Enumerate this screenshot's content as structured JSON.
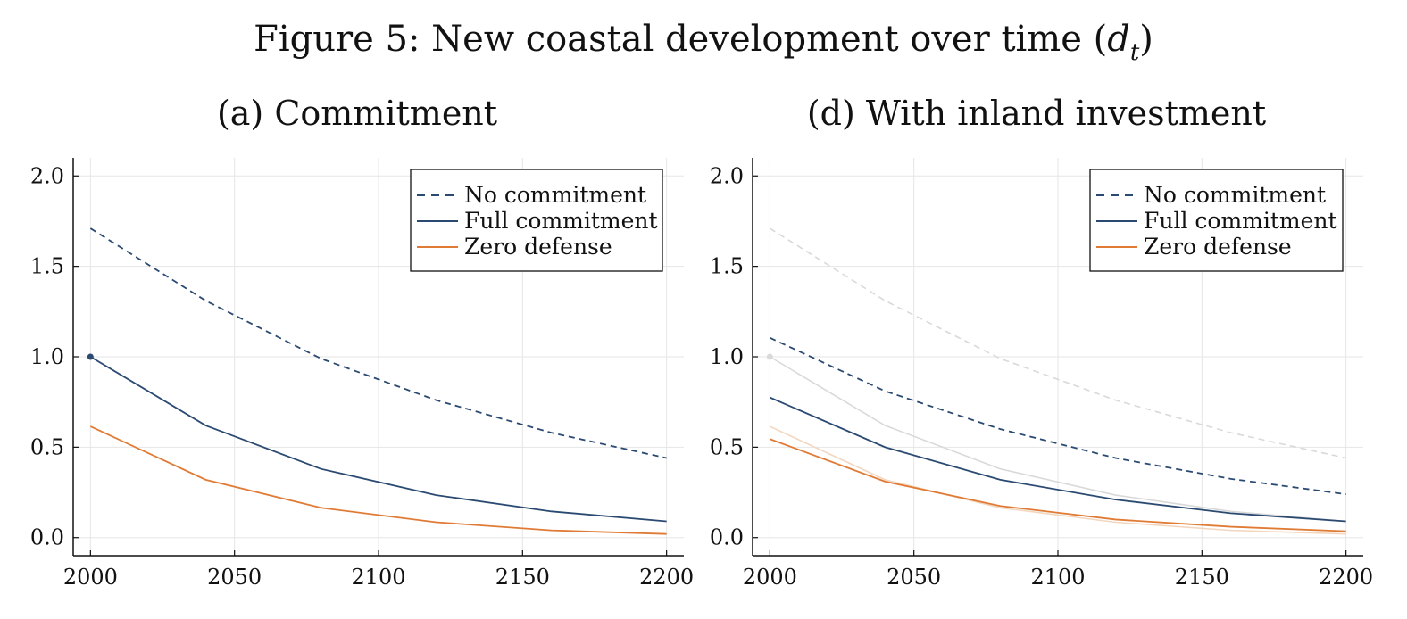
{
  "figure": {
    "title_prefix": "Figure 5: New coastal development over time (",
    "title_var": "d",
    "title_sub": "t",
    "title_suffix": ")"
  },
  "colors": {
    "navy": "#2b4a72",
    "orange": "#e07b35",
    "grid": "#e6e6e6",
    "ghost": "#d9d9d9",
    "ghost_orange": "#f3d6bf"
  },
  "chart_data": [
    {
      "type": "line",
      "title": "(a) Commitment",
      "xlabel": "",
      "ylabel": "",
      "xlim": [
        1994,
        2206
      ],
      "ylim": [
        -0.1,
        2.1
      ],
      "xticks": [
        2000,
        2050,
        2100,
        2150,
        2200
      ],
      "yticks": [
        0.0,
        0.5,
        1.0,
        1.5,
        2.0
      ],
      "grid": true,
      "legend_position": "top-right",
      "x": [
        2000,
        2040,
        2080,
        2120,
        2160,
        2200
      ],
      "series": [
        {
          "name": "No commitment",
          "style": "dashed",
          "color": "#2b4a72",
          "values": [
            1.71,
            1.31,
            0.99,
            0.76,
            0.58,
            0.44
          ]
        },
        {
          "name": "Full commitment",
          "style": "solid",
          "color": "#2b4a72",
          "values": [
            1.0,
            0.62,
            0.38,
            0.235,
            0.145,
            0.09
          ]
        },
        {
          "name": "Zero defense",
          "style": "solid",
          "color": "#e07b35",
          "values": [
            0.615,
            0.32,
            0.165,
            0.085,
            0.04,
            0.02
          ]
        }
      ],
      "markers": [
        {
          "x": 2000,
          "y": 1.0,
          "color": "#2b4a72"
        }
      ]
    },
    {
      "type": "line",
      "title": "(d) With inland investment",
      "xlabel": "",
      "ylabel": "",
      "xlim": [
        1994,
        2206
      ],
      "ylim": [
        -0.1,
        2.1
      ],
      "xticks": [
        2000,
        2050,
        2100,
        2150,
        2200
      ],
      "yticks": [
        0.0,
        0.5,
        1.0,
        1.5,
        2.0
      ],
      "grid": true,
      "legend_position": "top-right",
      "x": [
        2000,
        2040,
        2080,
        2120,
        2160,
        2200
      ],
      "background_series": [
        {
          "style": "dashed",
          "color": "#d9d9d9",
          "values": [
            1.71,
            1.31,
            0.99,
            0.76,
            0.58,
            0.44
          ]
        },
        {
          "style": "solid",
          "color": "#d9d9d9",
          "values": [
            1.0,
            0.62,
            0.38,
            0.235,
            0.145,
            0.09
          ]
        },
        {
          "style": "solid",
          "color": "#f3d6bf",
          "values": [
            0.615,
            0.32,
            0.165,
            0.085,
            0.04,
            0.02
          ]
        }
      ],
      "series": [
        {
          "name": "No commitment",
          "style": "dashed",
          "color": "#2b4a72",
          "values": [
            1.105,
            0.81,
            0.6,
            0.44,
            0.325,
            0.24
          ]
        },
        {
          "name": "Full commitment",
          "style": "solid",
          "color": "#2b4a72",
          "values": [
            0.775,
            0.5,
            0.32,
            0.21,
            0.135,
            0.09
          ]
        },
        {
          "name": "Zero defense",
          "style": "solid",
          "color": "#e07b35",
          "values": [
            0.545,
            0.31,
            0.175,
            0.1,
            0.06,
            0.035
          ]
        }
      ],
      "markers": [
        {
          "x": 2000,
          "y": 1.0,
          "color": "#d9d9d9"
        }
      ]
    }
  ]
}
